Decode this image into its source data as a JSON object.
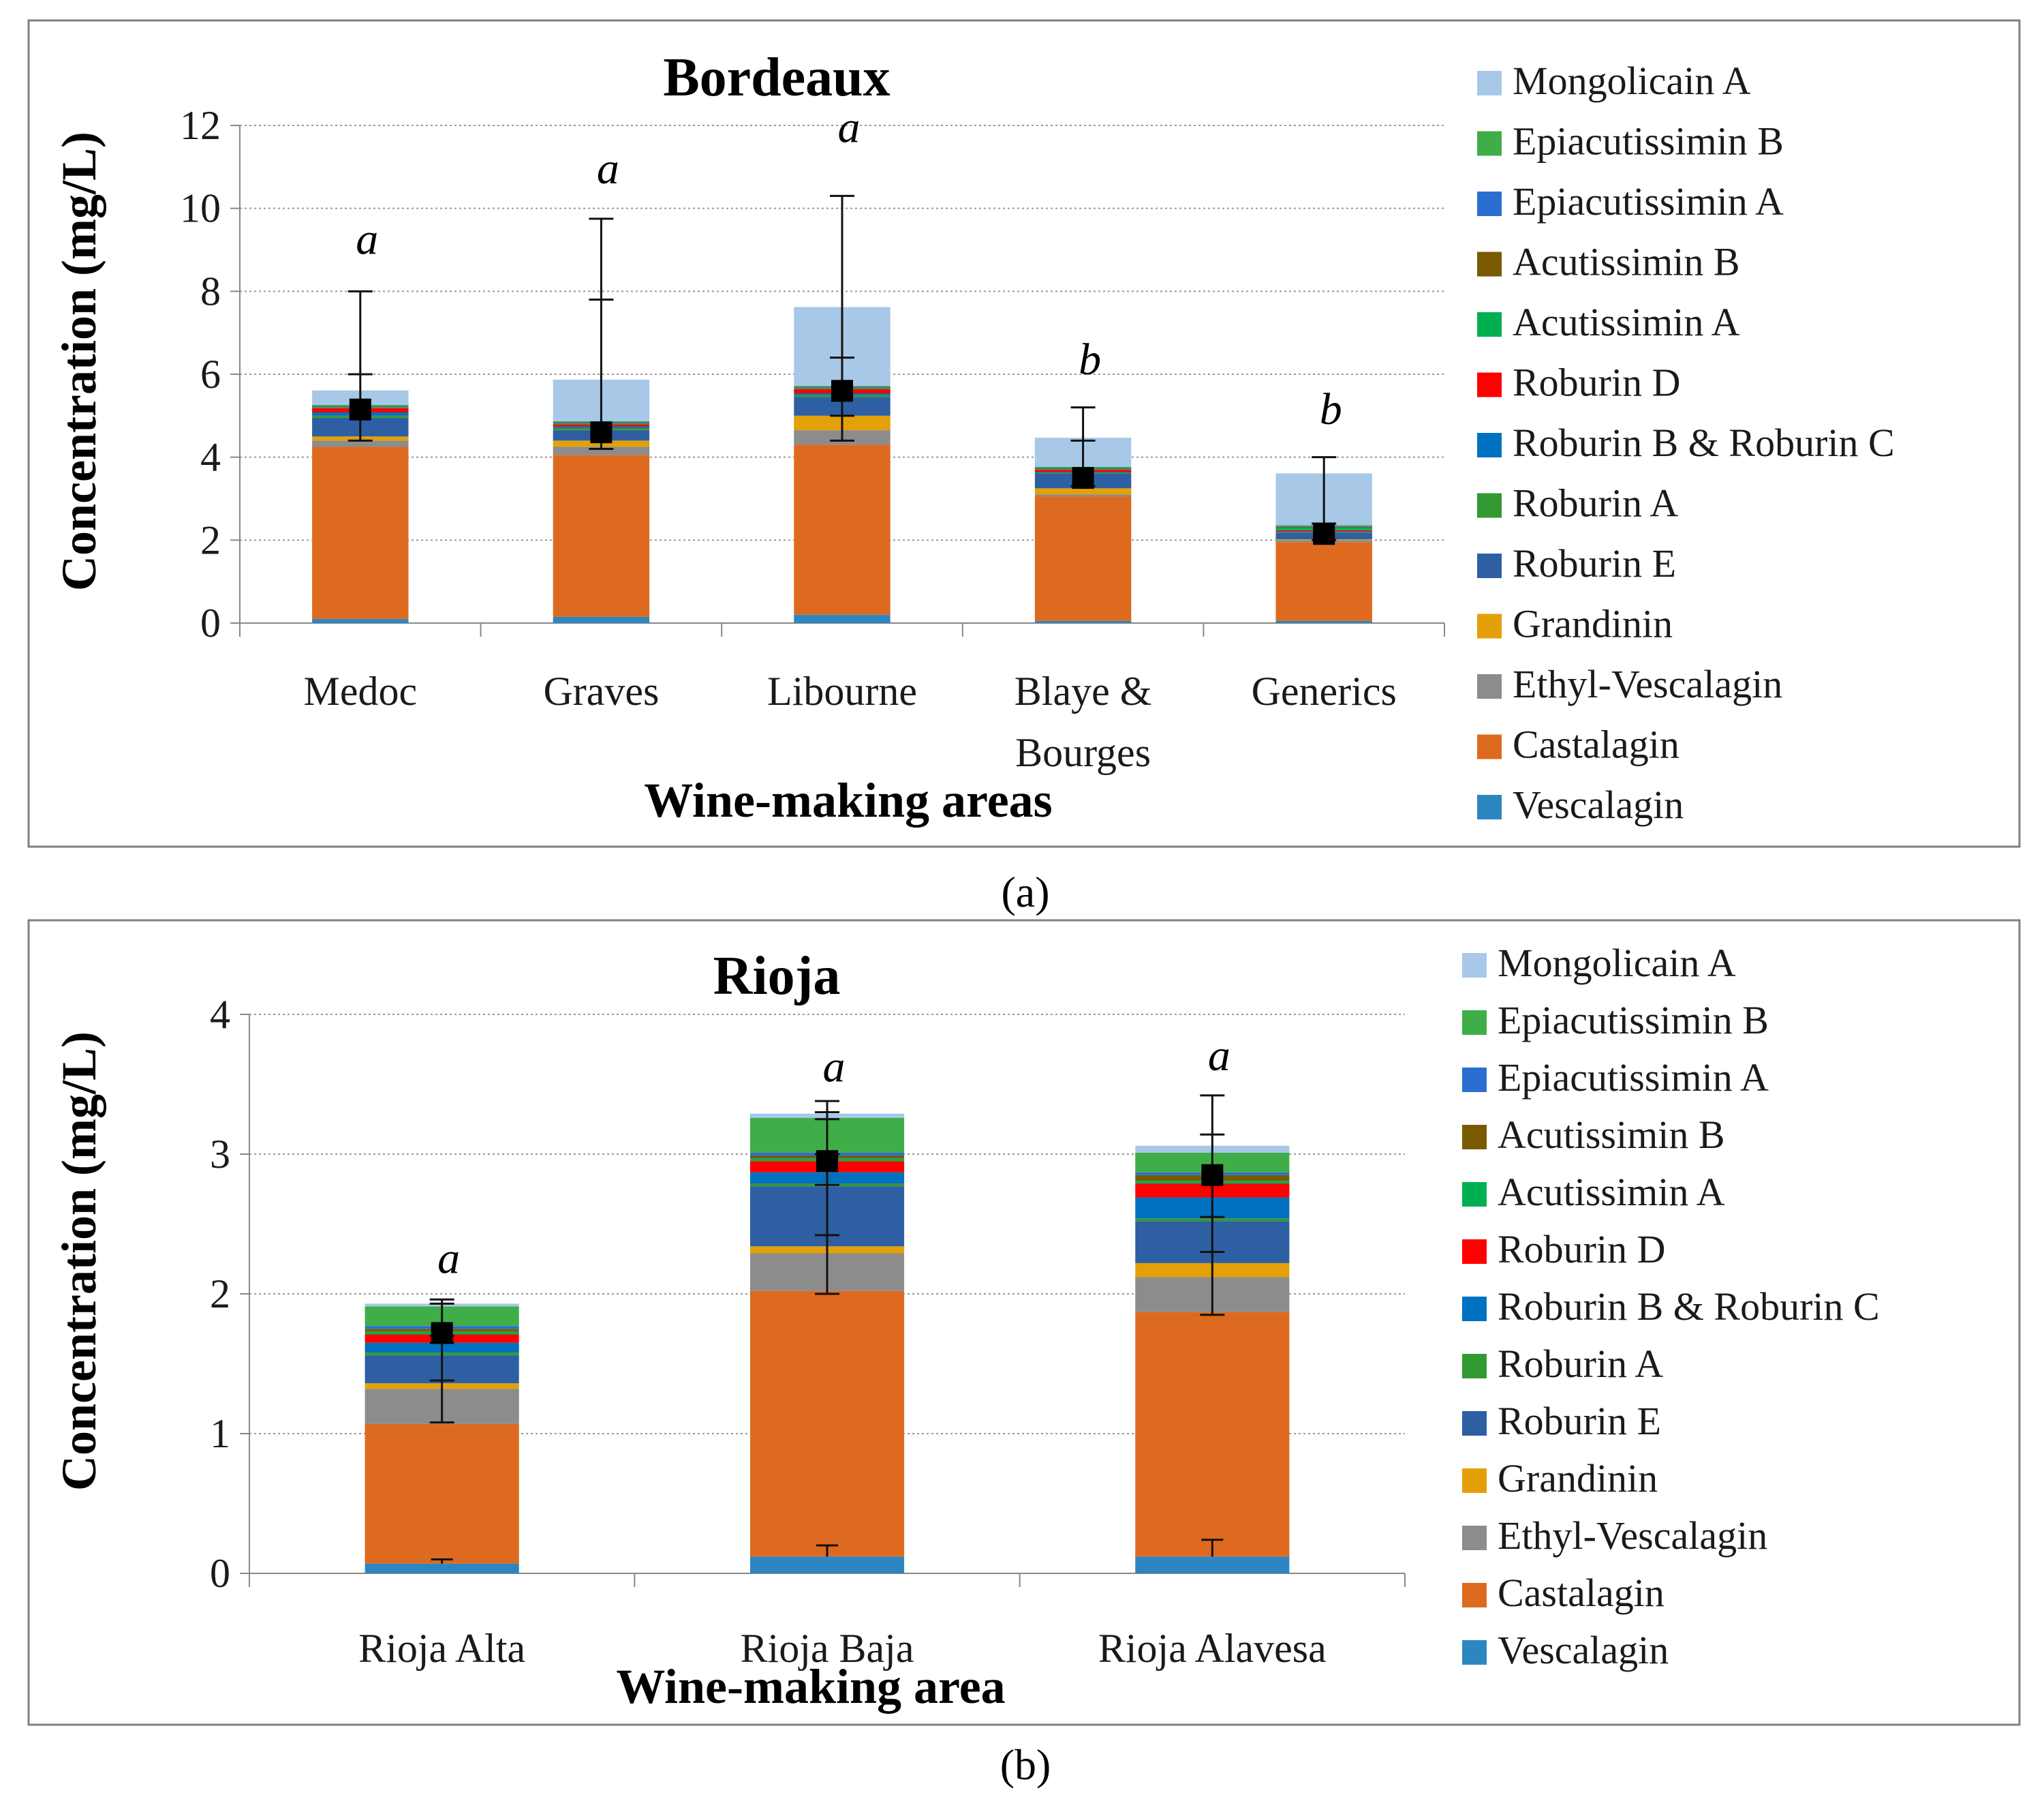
{
  "colors": {
    "Mongolicain A": "#a8c8e8",
    "Epiacutissimin B": "#3fae49",
    "Epiacutissimin A": "#2a6fd0",
    "Acutissimin B": "#7a5a00",
    "Acutissimin A": "#00b050",
    "Roburin D": "#ff0000",
    "Roburin B & Roburin C": "#0070c0",
    "Roburin A": "#339933",
    "Roburin E": "#2e5fa3",
    "Grandinin": "#e3a008",
    "Ethyl-Vescalagin": "#8c8c8c",
    "Castalagin": "#de6a1f",
    "Vescalagin": "#2e86c1"
  },
  "chart_data": [
    {
      "type": "bar",
      "stacked": true,
      "caption": "(a)",
      "title": "Bordeaux",
      "xlabel": "Wine-making areas",
      "ylabel": "Concentration (mg/L)",
      "ylim": [
        0,
        12
      ],
      "yticks": [
        0,
        2,
        4,
        6,
        8,
        10,
        12
      ],
      "grid": true,
      "legend_position": "right",
      "categories": [
        "Medoc",
        "Graves",
        "Libourne",
        "Blaye & Bourges",
        "Generics"
      ],
      "legend": [
        "Mongolicain A",
        "Epiacutissimin B",
        "Epiacutissimin A",
        "Acutissimin B",
        "Acutissimin A",
        "Roburin D",
        "Roburin B & Roburin C",
        "Roburin A",
        "Roburin E",
        "Grandinin",
        "Ethyl-Vescalagin",
        "Castalagin",
        "Vescalagin"
      ],
      "series": [
        {
          "name": "Vescalagin",
          "values": [
            0.1,
            0.15,
            0.2,
            0.05,
            0.05
          ]
        },
        {
          "name": "Castalagin",
          "values": [
            4.15,
            3.9,
            4.1,
            3.0,
            1.9
          ]
        },
        {
          "name": "Ethyl-Vescalagin",
          "values": [
            0.15,
            0.2,
            0.35,
            0.05,
            0.05
          ]
        },
        {
          "name": "Grandinin",
          "values": [
            0.1,
            0.15,
            0.35,
            0.15,
            0.02
          ]
        },
        {
          "name": "Roburin E",
          "values": [
            0.45,
            0.25,
            0.45,
            0.35,
            0.15
          ]
        },
        {
          "name": "Roburin A",
          "values": [
            0.05,
            0.05,
            0.05,
            0.02,
            0.02
          ]
        },
        {
          "name": "Roburin B & Roburin C",
          "values": [
            0.08,
            0.04,
            0.04,
            0.02,
            0.02
          ]
        },
        {
          "name": "Roburin D",
          "values": [
            0.1,
            0.05,
            0.1,
            0.05,
            0.03
          ]
        },
        {
          "name": "Acutissimin A",
          "values": [
            0.02,
            0.02,
            0.02,
            0.02,
            0.06
          ]
        },
        {
          "name": "Acutissimin B",
          "values": [
            0.02,
            0.02,
            0.02,
            0.02,
            0.02
          ]
        },
        {
          "name": "Epiacutissimin A",
          "values": [
            0.02,
            0.02,
            0.02,
            0.02,
            0.02
          ]
        },
        {
          "name": "Epiacutissimin B",
          "values": [
            0.02,
            0.02,
            0.02,
            0.02,
            0.02
          ]
        },
        {
          "name": "Mongolicain A",
          "values": [
            0.35,
            1.0,
            1.9,
            0.7,
            1.25
          ]
        }
      ],
      "markers": [
        5.15,
        4.6,
        5.6,
        3.5,
        2.15
      ],
      "error_bars": [
        {
          "center": 5.6,
          "top": 8.0,
          "bottom": 4.4,
          "inner": [
            6.0
          ]
        },
        {
          "center": 5.8,
          "top": 9.75,
          "bottom": 4.2,
          "inner": [
            7.8
          ]
        },
        {
          "center": 7.6,
          "top": 10.3,
          "bottom": 4.4,
          "inner": [
            6.4,
            5.0
          ]
        },
        {
          "center": 4.3,
          "top": 5.2,
          "bottom": 3.3,
          "inner": [
            4.4
          ]
        },
        {
          "center": 3.6,
          "top": 4.0,
          "bottom": 2.0,
          "inner": [
            2.4
          ]
        }
      ],
      "significance": [
        "a",
        "a",
        "a",
        "b",
        "b"
      ],
      "significance_y": [
        8.9,
        10.6,
        11.6,
        6.0,
        4.8
      ]
    },
    {
      "type": "bar",
      "stacked": true,
      "caption": "(b)",
      "title": "Rioja",
      "xlabel": "Wine-making area",
      "ylabel": "Concentration (mg/L)",
      "ylim": [
        0,
        4
      ],
      "yticks": [
        0,
        1,
        2,
        3,
        4
      ],
      "grid": true,
      "legend_position": "right",
      "categories": [
        "Rioja Alta",
        "Rioja Baja",
        "Rioja Alavesa"
      ],
      "legend": [
        "Mongolicain A",
        "Epiacutissimin B",
        "Epiacutissimin A",
        "Acutissimin B",
        "Acutissimin A",
        "Roburin D",
        "Roburin B & Roburin C",
        "Roburin A",
        "Roburin E",
        "Grandinin",
        "Ethyl-Vescalagin",
        "Castalagin",
        "Vescalagin"
      ],
      "series": [
        {
          "name": "Vescalagin",
          "values": [
            0.07,
            0.12,
            0.12
          ]
        },
        {
          "name": "Castalagin",
          "values": [
            1.0,
            1.9,
            1.75
          ]
        },
        {
          "name": "Ethyl-Vescalagin",
          "values": [
            0.25,
            0.27,
            0.25
          ]
        },
        {
          "name": "Grandinin",
          "values": [
            0.04,
            0.05,
            0.1
          ]
        },
        {
          "name": "Roburin E",
          "values": [
            0.2,
            0.43,
            0.3
          ]
        },
        {
          "name": "Roburin A",
          "values": [
            0.02,
            0.02,
            0.02
          ]
        },
        {
          "name": "Roburin B & Roburin C",
          "values": [
            0.07,
            0.08,
            0.15
          ]
        },
        {
          "name": "Roburin D",
          "values": [
            0.06,
            0.08,
            0.1
          ]
        },
        {
          "name": "Acutissimin A",
          "values": [
            0.02,
            0.02,
            0.02
          ]
        },
        {
          "name": "Acutissimin B",
          "values": [
            0.02,
            0.02,
            0.04
          ]
        },
        {
          "name": "Epiacutissimin A",
          "values": [
            0.02,
            0.02,
            0.02
          ]
        },
        {
          "name": "Epiacutissimin B",
          "values": [
            0.14,
            0.25,
            0.14
          ]
        },
        {
          "name": "Mongolicain A",
          "values": [
            0.02,
            0.03,
            0.05
          ]
        }
      ],
      "markers": [
        1.72,
        2.95,
        2.85
      ],
      "error_bars": [
        {
          "center": 1.6,
          "top": 1.96,
          "bottom": 1.08,
          "inner": [
            1.7,
            1.65,
            1.38,
            1.93
          ]
        },
        {
          "center": 2.95,
          "top": 3.38,
          "bottom": 2.0,
          "inner": [
            3.3,
            3.25,
            3.0,
            2.78,
            2.42
          ]
        },
        {
          "center": 2.85,
          "top": 3.42,
          "bottom": 1.85,
          "inner": [
            3.14,
            2.55,
            2.3
          ]
        }
      ],
      "bottom_error_bars": [
        {
          "top": 0.1,
          "bottom": 0.07
        },
        {
          "top": 0.2,
          "bottom": 0.12
        },
        {
          "top": 0.24,
          "bottom": 0.12
        }
      ],
      "significance": [
        "a",
        "a",
        "a"
      ],
      "significance_y": [
        2.15,
        3.52,
        3.6
      ]
    }
  ]
}
